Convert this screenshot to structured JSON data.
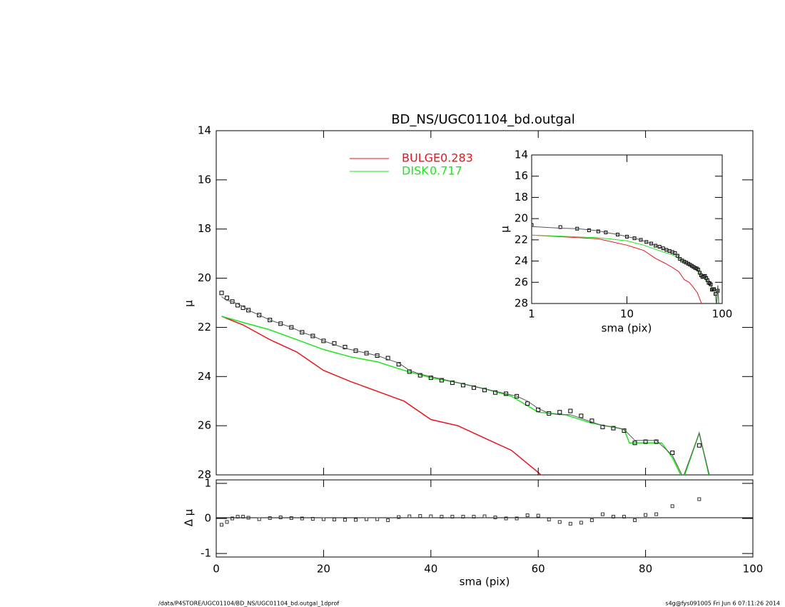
{
  "chart_data": {
    "type": "line",
    "title": "BD_NS/UGC01104_bd.outgal",
    "xlabel": "sma (pix)",
    "ylabel": "μ",
    "xlim": [
      0,
      100
    ],
    "xticks": [
      0,
      20,
      40,
      60,
      80,
      100
    ],
    "ylim": [
      14,
      28
    ],
    "yticks": [
      14,
      16,
      18,
      20,
      22,
      24,
      26,
      28
    ],
    "y_inverted": true,
    "series": [
      {
        "name": "BULGE",
        "fraction": 0.283,
        "color": "#e8141c",
        "x": [
          1,
          5,
          10,
          15,
          20,
          25,
          30,
          35,
          40,
          45,
          50,
          55,
          60,
          61
        ],
        "values": [
          21.55,
          21.9,
          22.5,
          23.0,
          23.75,
          24.2,
          24.6,
          25.0,
          25.75,
          26.0,
          26.5,
          27.0,
          27.9,
          28.1
        ]
      },
      {
        "name": "DISK",
        "fraction": 0.717,
        "color": "#1ee61e",
        "x": [
          1,
          5,
          10,
          15,
          20,
          25,
          30,
          35,
          40,
          45,
          50,
          55,
          60,
          65,
          70,
          75,
          76,
          77,
          80,
          83,
          85,
          87,
          90,
          92
        ],
        "values": [
          21.55,
          21.8,
          22.1,
          22.5,
          22.9,
          23.2,
          23.4,
          23.75,
          24.05,
          24.25,
          24.5,
          24.8,
          25.45,
          25.55,
          25.9,
          26.1,
          26.15,
          26.7,
          26.7,
          26.7,
          27.3,
          28.2,
          26.3,
          28.2
        ]
      },
      {
        "color": "#000000",
        "marker": "square",
        "x": [
          1,
          2,
          3,
          4,
          5,
          6,
          8,
          10,
          12,
          14,
          16,
          18,
          20,
          22,
          24,
          26,
          28,
          30,
          32,
          34,
          36,
          38,
          40,
          42,
          44,
          46,
          48,
          50,
          52,
          54,
          56,
          58,
          60,
          62,
          64,
          66,
          68,
          70,
          72,
          74,
          76,
          78,
          80,
          82,
          85,
          90
        ],
        "values": [
          20.6,
          20.8,
          20.95,
          21.1,
          21.2,
          21.3,
          21.5,
          21.7,
          21.85,
          22.0,
          22.2,
          22.35,
          22.55,
          22.65,
          22.8,
          22.95,
          23.05,
          23.15,
          23.25,
          23.5,
          23.8,
          23.95,
          24.05,
          24.15,
          24.25,
          24.35,
          24.45,
          24.55,
          24.65,
          24.7,
          24.8,
          25.1,
          25.35,
          25.5,
          25.45,
          25.4,
          25.6,
          25.8,
          26.05,
          26.1,
          26.2,
          26.7,
          26.65,
          26.65,
          27.1,
          26.8
        ]
      },
      {
        "color": "#555555",
        "x": [
          1,
          2,
          3,
          4,
          5,
          6,
          8,
          10,
          12,
          14,
          16,
          18,
          20,
          22,
          24,
          26,
          28,
          30,
          32,
          34,
          36,
          38,
          40,
          42,
          44,
          46,
          48,
          50,
          52,
          54,
          56,
          58,
          60,
          62,
          64,
          66,
          68,
          70,
          72,
          74,
          76,
          78,
          80,
          82,
          85,
          87,
          90,
          92
        ],
        "values": [
          20.75,
          20.9,
          20.95,
          21.05,
          21.15,
          21.3,
          21.5,
          21.7,
          21.85,
          22.0,
          22.2,
          22.35,
          22.55,
          22.7,
          22.85,
          22.95,
          23.05,
          23.15,
          23.3,
          23.45,
          23.75,
          23.9,
          24.0,
          24.1,
          24.2,
          24.3,
          24.4,
          24.5,
          24.6,
          24.7,
          24.8,
          25.0,
          25.3,
          25.5,
          25.55,
          25.55,
          25.7,
          25.85,
          26.0,
          26.05,
          26.15,
          26.6,
          26.6,
          26.6,
          27.2,
          28.1,
          26.3,
          28.1
        ]
      }
    ],
    "legend": "top-center",
    "residual": {
      "ylabel": "Δ μ",
      "ylim": [
        -1.1,
        1.1
      ],
      "yticks": [
        -1,
        0,
        1
      ],
      "x": [
        1,
        2,
        3,
        4,
        5,
        6,
        8,
        10,
        12,
        14,
        16,
        18,
        20,
        22,
        24,
        26,
        28,
        30,
        32,
        34,
        36,
        38,
        40,
        42,
        44,
        46,
        48,
        50,
        52,
        54,
        56,
        58,
        60,
        62,
        64,
        66,
        68,
        70,
        72,
        74,
        76,
        78,
        80,
        82,
        85,
        90
      ],
      "values": [
        -0.18,
        -0.1,
        0,
        0.05,
        0.05,
        0.02,
        -0.02,
        0.01,
        0.03,
        0.01,
        0,
        -0.01,
        -0.02,
        -0.03,
        -0.04,
        -0.04,
        -0.02,
        -0.02,
        -0.05,
        0.04,
        0.06,
        0.07,
        0.06,
        0.05,
        0.05,
        0.05,
        0.05,
        0.06,
        0.03,
        0,
        0,
        0.09,
        0.08,
        -0.03,
        -0.1,
        -0.15,
        -0.12,
        -0.05,
        0.12,
        0.05,
        0.05,
        -0.05,
        0.1,
        0.12,
        0.35,
        0.55
      ]
    },
    "inset": {
      "xlabel": "sma (pix)",
      "ylabel": "μ",
      "log_x": true,
      "xlim": [
        1,
        100
      ],
      "xticks": [
        1,
        10,
        100
      ],
      "ylim": [
        14,
        28
      ],
      "yticks": [
        14,
        16,
        18,
        20,
        22,
        24,
        26,
        28
      ]
    },
    "footer": {
      "left": "/data/P4STORE/UGC01104/BD_NS/UGC01104_bd.outgal_1dprof",
      "right": "s4g@fys091005  Fri Jun  6 07:11:26 2014"
    }
  }
}
